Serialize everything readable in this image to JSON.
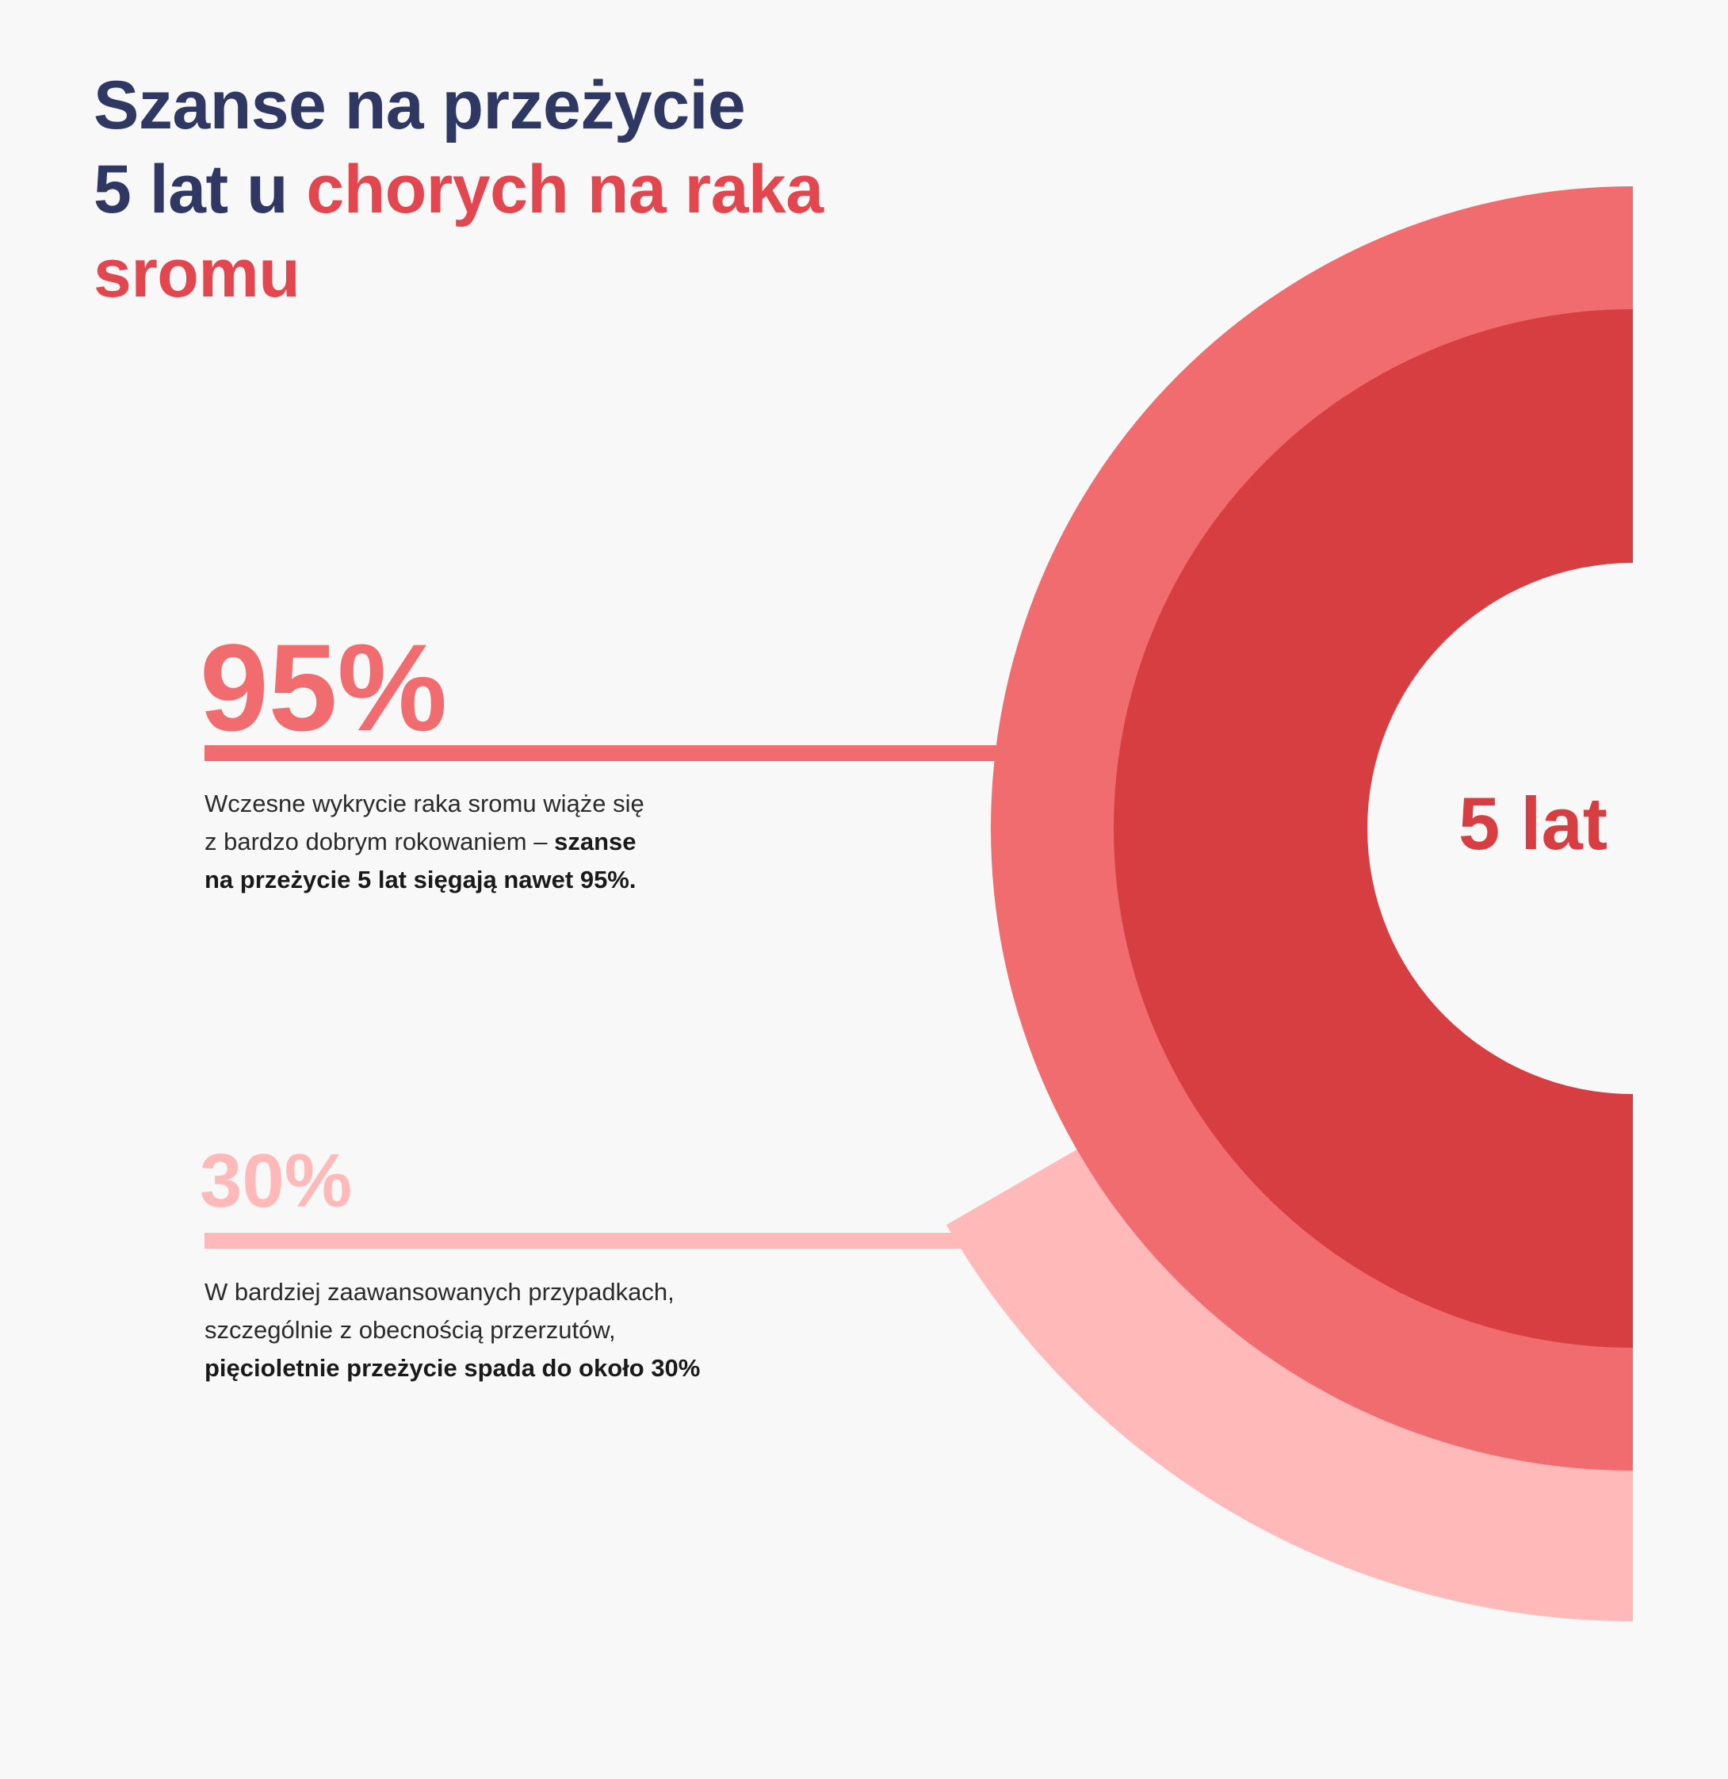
{
  "title": {
    "line1": "Szanse na przeżycie",
    "line2_dark": "5 lat u ",
    "line2_accent": "chorych na raka",
    "line3_accent": "sromu"
  },
  "center_label": "5 lat",
  "stats": [
    {
      "value_label": "95%",
      "desc_plain_1": "Wczesne wykrycie raka sromu wiąże się",
      "desc_plain_2": "z bardzo dobrym rokowaniem – ",
      "desc_bold_2": "szanse",
      "desc_bold_3": "na przeżycie 5 lat sięgają nawet 95%."
    },
    {
      "value_label": "30%",
      "desc_plain_1": "W bardziej zaawansowanych przypadkach,",
      "desc_plain_2": "szczególnie z obecnością przerzutów,",
      "desc_bold_3": "pięcioletnie przeżycie spada do około 30%"
    }
  ],
  "colors": {
    "title_dark": "#2e3862",
    "title_accent": "#e2474f",
    "ring_95": "#f06c6e",
    "ring_inner": "#d63e42",
    "ring_30": "#ffb9b9",
    "background": "#f8f8f8"
  },
  "chart_data": {
    "type": "pie",
    "subtype": "concentric-rings",
    "categories": [
      "5 lat"
    ],
    "series": [
      {
        "values": [
          95
        ]
      },
      {
        "values": [
          30
        ]
      }
    ],
    "unit": "%"
  }
}
